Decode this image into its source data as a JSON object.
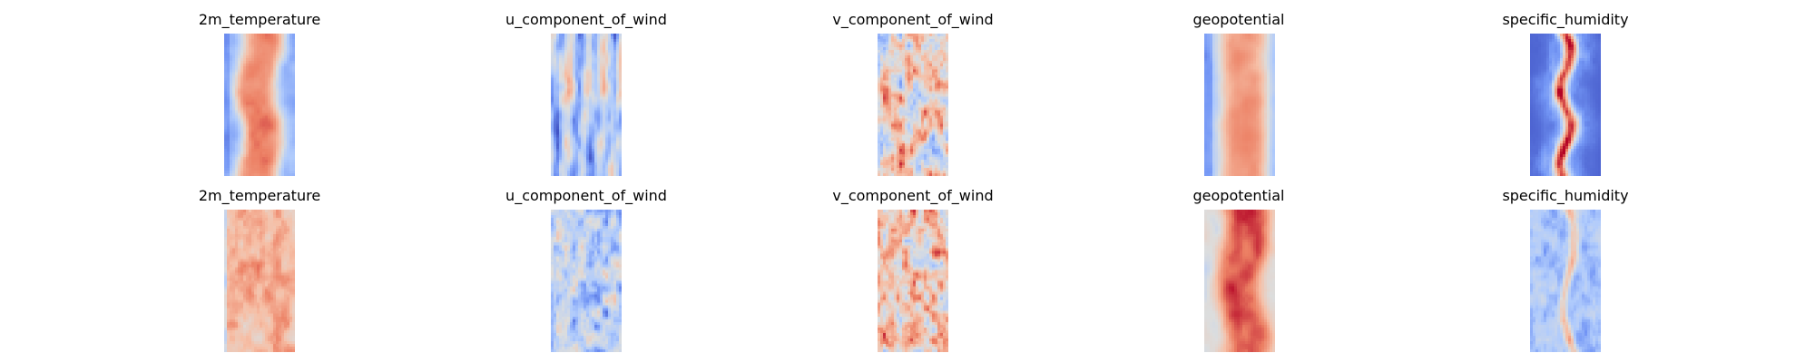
{
  "colors": {
    "colormap": "coolwarm",
    "coolwarm_stops": [
      "#3b4cc0",
      "#7396f5",
      "#b0cbfc",
      "#dcdddd",
      "#f6bfa6",
      "#ec7f63",
      "#b40426"
    ]
  },
  "chart_data": [
    {
      "type": "heatmap",
      "title": "2m_temperature",
      "field": "warm_band",
      "row": 1
    },
    {
      "type": "heatmap",
      "title": "u_component_of_wind",
      "field": "wind_stripes",
      "row": 1
    },
    {
      "type": "heatmap",
      "title": "v_component_of_wind",
      "field": "wind_noise",
      "row": 1
    },
    {
      "type": "heatmap",
      "title": "geopotential",
      "field": "warm_band_soft",
      "row": 1
    },
    {
      "type": "heatmap",
      "title": "specific_humidity",
      "field": "narrow_spine",
      "row": 1
    },
    {
      "type": "heatmap",
      "title": "2m_temperature",
      "field": "warm_noisy",
      "row": 2
    },
    {
      "type": "heatmap",
      "title": "u_component_of_wind",
      "field": "cool_noisy",
      "row": 2
    },
    {
      "type": "heatmap",
      "title": "v_component_of_wind",
      "field": "warm_speckle",
      "row": 2
    },
    {
      "type": "heatmap",
      "title": "geopotential",
      "field": "warm_band_strong",
      "row": 2
    },
    {
      "type": "heatmap",
      "title": "specific_humidity",
      "field": "cool_spine",
      "row": 2
    }
  ]
}
